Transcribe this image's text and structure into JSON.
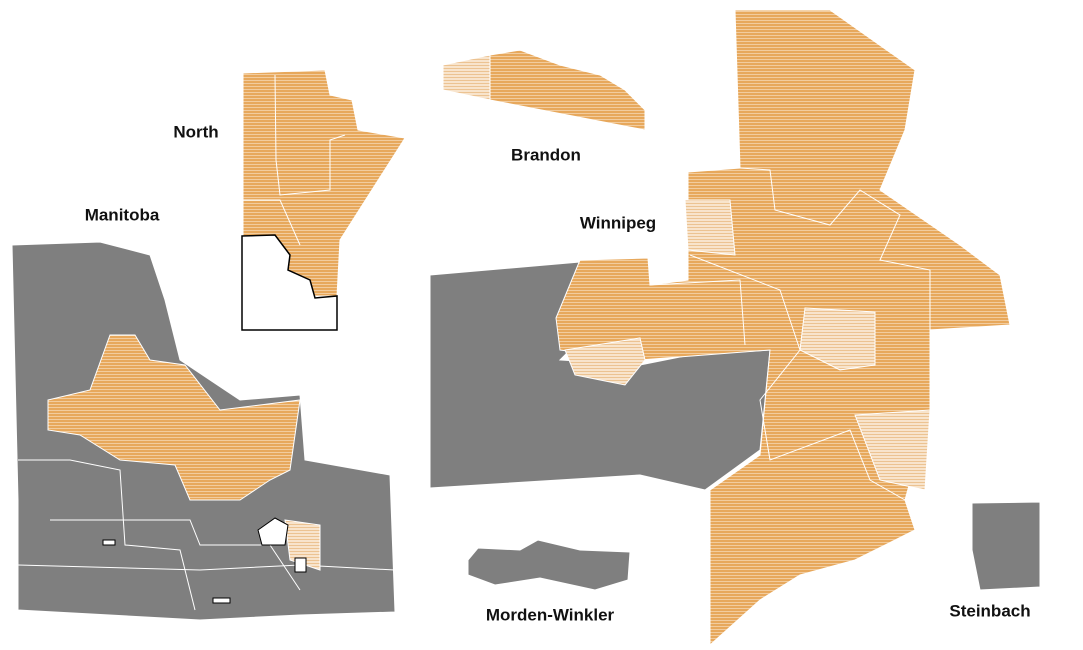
{
  "labels": {
    "north": "North",
    "manitoba": "Manitoba",
    "brandon": "Brandon",
    "winnipeg": "Winnipeg",
    "morden_winkler": "Morden-Winkler",
    "steinbach": "Steinbach"
  }
}
